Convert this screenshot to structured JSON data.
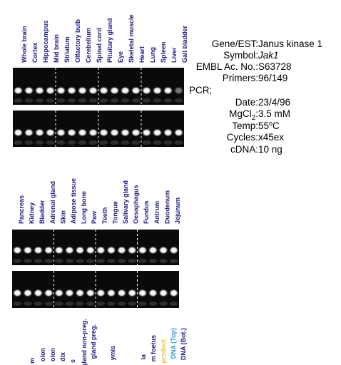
{
  "top": {
    "lanes": [
      "Whole brain",
      "Cortex",
      "Hippocampus",
      "Mid brain",
      "Striatum",
      "Olfactory bulb",
      "Cerebellum",
      "Spinal cord",
      "Pituitary gland",
      "Eye",
      "Skeletal muscle",
      "Heart",
      "Lung",
      "Spleen",
      "Liver",
      "Gall bladder"
    ]
  },
  "info": {
    "gene_label": "Gene/EST:",
    "gene": "Janus kinase 1",
    "symbol_label": "Symbol:",
    "symbol": "Jak1",
    "embl_label": "EMBL Ac. No.:",
    "embl": "S63728",
    "primers_label": "Primers:",
    "primers": "96/149",
    "pcr": "PCR;",
    "date_label": "Date:",
    "date": "23/4/96",
    "mgcl_label": "MgCl",
    "mgcl_sub": "2",
    "mgcl_colon": ":",
    "mgcl": "3.5 mM",
    "temp_label": "Temp:",
    "temp": "55",
    "temp_deg": "o",
    "temp_unit": "C",
    "cycles_label": "Cycles:",
    "cycles": "x45ex",
    "cdna_label": "cDNA:",
    "cdna": "10 ng"
  },
  "middle": {
    "lanes": [
      "Pancreas",
      "Kidney",
      "Bladder",
      "Adrenal gland",
      "Skin",
      "Adipose tissue",
      "Long bone",
      "Paw",
      "Teeth",
      "Tongue",
      "Salivary gland",
      "Oesophagus",
      "Fundus",
      "Antrum",
      "Duodenum",
      "Jejunum"
    ]
  },
  "bottom": {
    "lanes": [
      "m",
      "olon",
      "olon",
      "dix",
      "s",
      "gland non-preg.",
      "gland preg.",
      "ymis",
      "la",
      "m foetus",
      "product",
      "DNA (Top)",
      "DNA (Bot.)"
    ]
  }
}
